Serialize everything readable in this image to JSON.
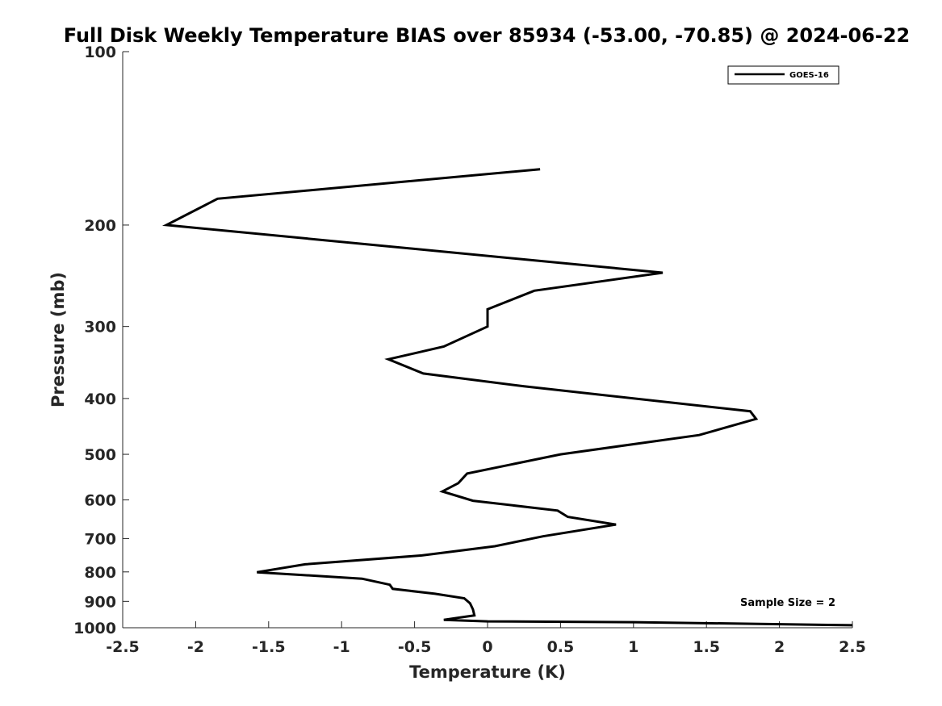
{
  "chart_data": {
    "type": "line",
    "title": "Full Disk Weekly Temperature BIAS over 85934 (-53.00, -70.85) @ 2024-06-22",
    "xlabel": "Temperature (K)",
    "ylabel": "Pressure (mb)",
    "xlim": [
      -2.5,
      2.5
    ],
    "ylim": [
      100,
      1000
    ],
    "y_scale": "log",
    "y_reversed": true,
    "grid": false,
    "legend_position": "top-right",
    "x_ticks": [
      -2.5,
      -2,
      -1.5,
      -1,
      -0.5,
      0,
      0.5,
      1,
      1.5,
      2,
      2.5
    ],
    "x_tick_labels": [
      "-2.5",
      "-2",
      "-1.5",
      "-1",
      "-0.5",
      "0",
      "0.5",
      "1",
      "1.5",
      "2",
      "2.5"
    ],
    "y_ticks": [
      100,
      200,
      300,
      400,
      500,
      600,
      700,
      800,
      900,
      1000
    ],
    "y_tick_labels": [
      "100",
      "200",
      "300",
      "400",
      "500",
      "600",
      "700",
      "800",
      "900",
      "1000"
    ],
    "series": [
      {
        "name": "GOES-16",
        "color": "#000000",
        "points": [
          [
            0.36,
            160
          ],
          [
            -1.85,
            180
          ],
          [
            -2.2,
            200
          ],
          [
            1.2,
            242
          ],
          [
            0.32,
            260
          ],
          [
            0.0,
            280
          ],
          [
            0.0,
            300
          ],
          [
            -0.3,
            325
          ],
          [
            -0.68,
            342
          ],
          [
            -0.44,
            362
          ],
          [
            0.25,
            381
          ],
          [
            1.8,
            421
          ],
          [
            1.84,
            434
          ],
          [
            1.45,
            463
          ],
          [
            0.5,
            500
          ],
          [
            -0.14,
            540
          ],
          [
            -0.2,
            561
          ],
          [
            -0.31,
            580
          ],
          [
            -0.1,
            602
          ],
          [
            0.48,
            626
          ],
          [
            0.55,
            642
          ],
          [
            0.88,
            662
          ],
          [
            0.38,
            694
          ],
          [
            0.05,
            722
          ],
          [
            -0.45,
            749
          ],
          [
            -1.25,
            776
          ],
          [
            -1.58,
            801
          ],
          [
            -0.86,
            822
          ],
          [
            -0.67,
            842
          ],
          [
            -0.65,
            856
          ],
          [
            -0.36,
            873
          ],
          [
            -0.16,
            889
          ],
          [
            -0.12,
            907
          ],
          [
            -0.1,
            929
          ],
          [
            -0.09,
            952
          ],
          [
            -0.3,
            969
          ],
          [
            0.0,
            975
          ],
          [
            1.0,
            978
          ],
          [
            2.5,
            990
          ]
        ]
      }
    ],
    "annotation": "Sample Size = 2"
  }
}
